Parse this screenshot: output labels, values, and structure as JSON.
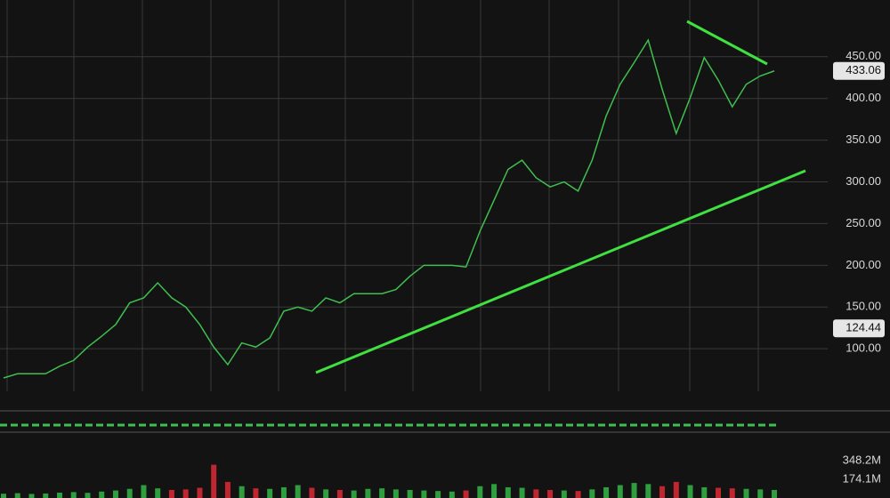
{
  "chart_data": [
    {
      "type": "line",
      "series": [
        {
          "color": "#3fbf4f",
          "values": [
            65,
            70,
            70,
            70,
            79,
            86,
            102,
            115,
            129,
            155,
            161,
            179,
            161,
            150,
            129,
            102,
            81,
            107,
            102,
            113,
            145,
            150,
            145,
            161,
            155,
            166,
            166,
            166,
            171,
            187,
            200,
            200,
            200,
            198,
            241,
            278,
            315,
            326,
            305,
            294,
            300,
            289,
            326,
            379,
            417,
            443,
            470,
            411,
            358,
            401,
            449,
            422,
            390,
            417,
            427,
            433
          ]
        }
      ],
      "ylim": [
        49,
        518
      ],
      "yticks": [
        {
          "value": 100,
          "label": "100.00"
        },
        {
          "value": 150,
          "label": "150.00"
        },
        {
          "value": 200,
          "label": "200.00"
        },
        {
          "value": 250,
          "label": "250.00"
        },
        {
          "value": 300,
          "label": "300.00"
        },
        {
          "value": 350,
          "label": "350.00"
        },
        {
          "value": 400,
          "label": "400.00"
        },
        {
          "value": 450,
          "label": "450.00"
        }
      ],
      "grid": true,
      "price_markers": [
        {
          "value": 433.06,
          "label": "433.06"
        },
        {
          "value": 124.44,
          "label": "124.44"
        }
      ]
    },
    {
      "type": "bar",
      "values": [
        40,
        45,
        38,
        42,
        50,
        55,
        48,
        60,
        70,
        85,
        120,
        90,
        75,
        80,
        95,
        310,
        150,
        110,
        90,
        85,
        100,
        120,
        95,
        80,
        75,
        70,
        85,
        90,
        80,
        75,
        70,
        65,
        60,
        70,
        110,
        130,
        100,
        95,
        80,
        75,
        70,
        65,
        80,
        100,
        120,
        140,
        130,
        110,
        150,
        120,
        100,
        95,
        90,
        85,
        80,
        75
      ],
      "up_color": "#2e9e3e",
      "down_color": "#c0262f",
      "ylim": [
        0,
        497
      ],
      "yticks": [
        {
          "value": 348.2,
          "label": "348.2M"
        },
        {
          "value": 174.1,
          "label": "174.1M"
        }
      ]
    }
  ]
}
